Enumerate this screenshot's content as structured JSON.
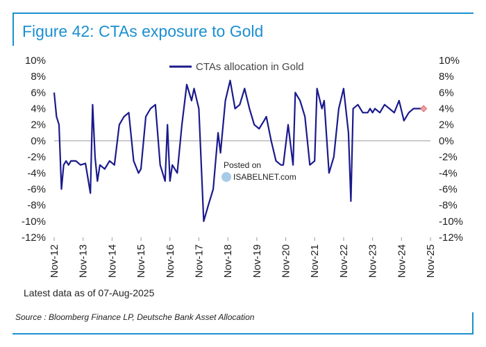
{
  "figure": {
    "title": "Figure 42: CTAs exposure to Gold",
    "note": "Latest data as of 07-Aug-2025",
    "source": "Source : Bloomberg Finance LP, Deutsche Bank Asset Allocation",
    "watermark_line1": "Posted on",
    "watermark_line2": "ISABELNET.com"
  },
  "colors": {
    "frame": "#1b8fd0",
    "series": "#1a1a8c",
    "latest_marker": "#f2a0a0"
  },
  "chart_data": {
    "type": "line",
    "title": "Figure 42: CTAs exposure to Gold",
    "xlabel": "",
    "ylabel": "",
    "ylim": [
      -12,
      10
    ],
    "y_ticks": [
      "10%",
      "8%",
      "6%",
      "4%",
      "2%",
      "0%",
      "-2%",
      "-4%",
      "-6%",
      "-8%",
      "-10%",
      "-12%"
    ],
    "y_tick_values": [
      10,
      8,
      6,
      4,
      2,
      0,
      -2,
      -4,
      -6,
      -8,
      -10,
      -12
    ],
    "x_ticks": [
      "Nov-12",
      "Nov-13",
      "Nov-14",
      "Nov-15",
      "Nov-16",
      "Nov-17",
      "Nov-18",
      "Nov-19",
      "Nov-20",
      "Nov-21",
      "Nov-22",
      "Nov-23",
      "Nov-24",
      "Nov-25"
    ],
    "legend_position": "top",
    "grid": false,
    "secondary_axis": true,
    "series": [
      {
        "name": "CTAs allocation in Gold",
        "x": [
          "2012-11-01",
          "2012-12-01",
          "2013-01-01",
          "2013-02-01",
          "2013-03-01",
          "2013-04-01",
          "2013-05-01",
          "2013-06-01",
          "2013-08-01",
          "2013-10-01",
          "2013-12-01",
          "2014-02-01",
          "2014-03-01",
          "2014-04-01",
          "2014-05-01",
          "2014-06-01",
          "2014-08-01",
          "2014-10-01",
          "2014-12-01",
          "2015-02-01",
          "2015-04-01",
          "2015-06-01",
          "2015-08-01",
          "2015-10-01",
          "2015-11-01",
          "2016-01-01",
          "2016-03-01",
          "2016-05-01",
          "2016-07-01",
          "2016-09-01",
          "2016-10-01",
          "2016-11-01",
          "2016-12-01",
          "2017-02-01",
          "2017-04-01",
          "2017-06-01",
          "2017-08-01",
          "2017-09-01",
          "2017-11-01",
          "2018-01-01",
          "2018-03-01",
          "2018-05-01",
          "2018-07-01",
          "2018-08-01",
          "2018-10-01",
          "2018-12-01",
          "2019-02-01",
          "2019-04-01",
          "2019-06-01",
          "2019-08-01",
          "2019-10-01",
          "2019-12-01",
          "2020-02-01",
          "2020-03-01",
          "2020-05-01",
          "2020-07-01",
          "2020-09-01",
          "2020-10-01",
          "2020-12-01",
          "2021-02-01",
          "2021-03-01",
          "2021-05-01",
          "2021-07-01",
          "2021-09-01",
          "2021-11-01",
          "2021-12-01",
          "2022-02-01",
          "2022-03-01",
          "2022-05-01",
          "2022-07-01",
          "2022-09-01",
          "2022-11-01",
          "2023-01-01",
          "2023-02-01",
          "2023-03-01",
          "2023-05-01",
          "2023-07-01",
          "2023-09-01",
          "2023-10-01",
          "2023-11-01",
          "2023-12-01",
          "2024-02-01",
          "2024-04-01",
          "2024-06-01",
          "2024-08-01",
          "2024-10-01",
          "2024-12-01",
          "2025-02-01",
          "2025-04-01",
          "2025-06-01",
          "2025-08-07"
        ],
        "values": [
          6,
          3,
          2,
          -6,
          -3,
          -2.5,
          -3,
          -2.5,
          -2.5,
          -3,
          -2.8,
          -6.5,
          4.5,
          -2,
          -5,
          -3,
          -3.5,
          -2.5,
          -3,
          2,
          3,
          3.5,
          -2.5,
          -4,
          -3.5,
          3,
          4,
          4.5,
          -3,
          -5,
          2,
          -5,
          -3,
          -4,
          2,
          7,
          5,
          6.5,
          4,
          -10,
          -8,
          -6,
          1,
          -1.5,
          5,
          7.5,
          4,
          4.5,
          6.5,
          4,
          2,
          1.5,
          2.5,
          3,
          0,
          -2.5,
          -3,
          -3,
          2,
          -3,
          6,
          5,
          3,
          -3,
          -2.5,
          6.5,
          4,
          5,
          -4,
          -2,
          4,
          6.5,
          1,
          -7.5,
          4,
          4.5,
          3.5,
          3.5,
          4,
          3.5,
          4,
          3.5,
          4.5,
          4,
          3.5,
          5,
          2.5,
          3.5,
          4,
          4,
          4
        ]
      }
    ],
    "latest_point": {
      "x": "2025-08-07",
      "y": 4
    }
  }
}
